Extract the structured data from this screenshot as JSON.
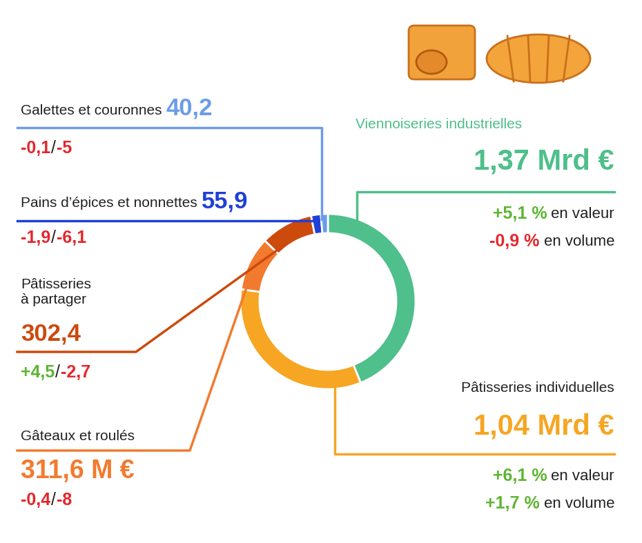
{
  "chart_data": {
    "type": "donut",
    "categories": [
      "Viennoiseries industrielles",
      "Pâtisseries individuelles",
      "Gâteaux et roulés",
      "Pâtisseries\nà partager",
      "Pains d’épices et nonnettes",
      "Galettes et couronnes"
    ],
    "values": [
      1370,
      1040,
      311.6,
      302.4,
      55.9,
      40.2
    ],
    "value_labels": [
      "1,37 Mrd €",
      "1,04 Mrd €",
      "311,6 M €",
      "302,4",
      "55,9",
      "40,2"
    ],
    "colors": [
      "#4fbf8b",
      "#f6a623",
      "#f27a2e",
      "#cc4a0c",
      "#1f3fd6",
      "#6b9ce8"
    ],
    "data_labels": true,
    "value_change": [
      5.1,
      6.1,
      -0.4,
      4.5,
      -1.9,
      -0.1
    ],
    "value_change_labels": [
      "+5,1 %",
      "+6,1 %",
      "-0,4",
      "+4,5",
      "-1,9",
      "-0,1"
    ],
    "volume_change": [
      -0.9,
      1.7,
      -8,
      -2.7,
      -6.1,
      -5
    ],
    "volume_change_labels": [
      "-0,9 %",
      "+1,7 %",
      "-8",
      "-2,7",
      "-6,1",
      "-5"
    ],
    "change_texts": [
      "en valeur",
      "en volume"
    ],
    "separator": "/"
  }
}
